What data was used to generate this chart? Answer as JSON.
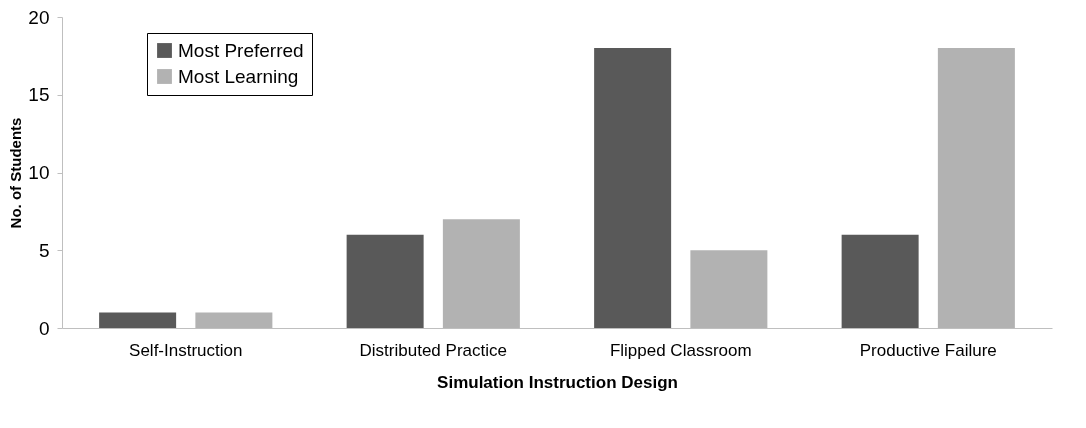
{
  "chart_data": {
    "type": "bar",
    "xlabel": "Simulation Instruction Design",
    "ylabel": "No. of Students",
    "categories": [
      "Self-Instruction",
      "Distributed Practice",
      "Flipped Classroom",
      "Productive Failure"
    ],
    "series": [
      {
        "name": "Most Preferred",
        "color": "#595959",
        "values": [
          1,
          6,
          18,
          6
        ]
      },
      {
        "name": "Most Learning",
        "color": "#b2b2b2",
        "values": [
          1,
          7,
          5,
          18
        ]
      }
    ],
    "ylim": [
      0,
      20
    ],
    "yticks": [
      0,
      5,
      10,
      15,
      20
    ],
    "grid": false,
    "legend": "top left"
  }
}
